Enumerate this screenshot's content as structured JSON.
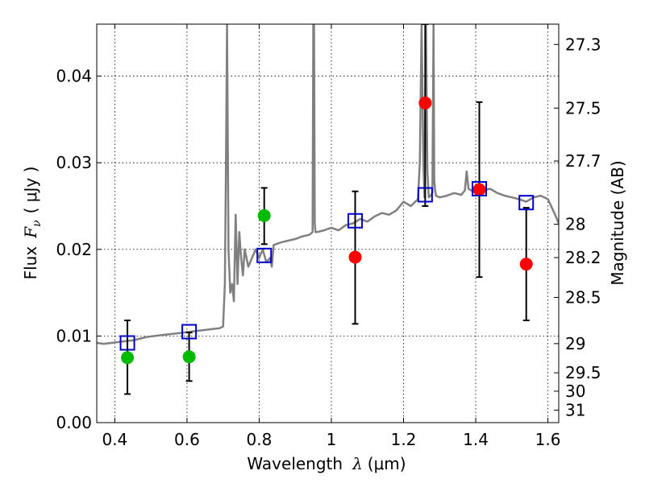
{
  "chart_data": {
    "type": "scatter",
    "xlabel": "Wavelength",
    "xlabel_symbol": "λ",
    "xlabel_unit": "(μm)",
    "ylabel": "Flux",
    "ylabel_symbol": "F",
    "ylabel_subscript": "ν",
    "ylabel_unit": "( μJy )",
    "y2label": "Magnitude (AB)",
    "xlim": [
      0.35,
      1.63
    ],
    "ylim": [
      0.0,
      0.046
    ],
    "grid": true,
    "x_ticks": [
      {
        "value": 0.4,
        "label": "0.4"
      },
      {
        "value": 0.6,
        "label": "0.6"
      },
      {
        "value": 0.8,
        "label": "0.8"
      },
      {
        "value": 1.0,
        "label": "1"
      },
      {
        "value": 1.2,
        "label": "1.2"
      },
      {
        "value": 1.4,
        "label": "1.4"
      },
      {
        "value": 1.6,
        "label": "1.6"
      }
    ],
    "y_ticks": [
      {
        "value": 0.0,
        "label": "0.00"
      },
      {
        "value": 0.01,
        "label": "0.01"
      },
      {
        "value": 0.02,
        "label": "0.02"
      },
      {
        "value": 0.03,
        "label": "0.03"
      },
      {
        "value": 0.04,
        "label": "0.04"
      }
    ],
    "mag_ticks": [
      {
        "value": 27.3,
        "label": "27.3"
      },
      {
        "value": 27.5,
        "label": "27.5"
      },
      {
        "value": 27.7,
        "label": "27.7"
      },
      {
        "value": 28.0,
        "label": "28"
      },
      {
        "value": 28.2,
        "label": "28.2"
      },
      {
        "value": 28.5,
        "label": "28.5"
      },
      {
        "value": 29.0,
        "label": "29"
      },
      {
        "value": 29.5,
        "label": "29.5"
      },
      {
        "value": 30.0,
        "label": "30"
      },
      {
        "value": 31.0,
        "label": "31"
      }
    ],
    "model_spectrum": {
      "color": "#808080",
      "x": [
        0.35,
        0.37,
        0.39,
        0.41,
        0.43,
        0.45,
        0.47,
        0.49,
        0.51,
        0.53,
        0.55,
        0.57,
        0.59,
        0.61,
        0.63,
        0.65,
        0.67,
        0.69,
        0.7,
        0.705,
        0.708,
        0.711,
        0.715,
        0.72,
        0.725,
        0.73,
        0.735,
        0.74,
        0.745,
        0.75,
        0.755,
        0.76,
        0.77,
        0.78,
        0.79,
        0.8,
        0.81,
        0.82,
        0.83,
        0.835,
        0.84,
        0.86,
        0.88,
        0.9,
        0.92,
        0.94,
        0.948,
        0.95,
        0.952,
        0.954,
        0.956,
        0.96,
        0.98,
        1.0,
        1.02,
        1.04,
        1.06,
        1.08,
        1.1,
        1.12,
        1.14,
        1.16,
        1.18,
        1.2,
        1.22,
        1.24,
        1.245,
        1.25,
        1.255,
        1.258,
        1.262,
        1.266,
        1.27,
        1.275,
        1.28,
        1.283,
        1.285,
        1.287,
        1.29,
        1.3,
        1.32,
        1.34,
        1.36,
        1.37,
        1.375,
        1.38,
        1.4,
        1.42,
        1.44,
        1.46,
        1.48,
        1.5,
        1.52,
        1.54,
        1.56,
        1.58,
        1.6,
        1.62,
        1.63
      ],
      "y": [
        0.0092,
        0.0091,
        0.0092,
        0.0093,
        0.0094,
        0.0095,
        0.0097,
        0.0099,
        0.01,
        0.0101,
        0.0102,
        0.0103,
        0.0104,
        0.0105,
        0.0106,
        0.0107,
        0.0108,
        0.0109,
        0.0111,
        0.016,
        0.03,
        0.046,
        0.02,
        0.015,
        0.016,
        0.014,
        0.024,
        0.016,
        0.022,
        0.019,
        0.017,
        0.02,
        0.018,
        0.019,
        0.02,
        0.019,
        0.02,
        0.0185,
        0.019,
        0.018,
        0.0205,
        0.0208,
        0.021,
        0.0212,
        0.0215,
        0.0217,
        0.022,
        0.046,
        0.046,
        0.023,
        0.022,
        0.022,
        0.0222,
        0.0225,
        0.0222,
        0.0228,
        0.023,
        0.0235,
        0.0232,
        0.0238,
        0.0242,
        0.024,
        0.0245,
        0.0255,
        0.025,
        0.0258,
        0.03,
        0.046,
        0.03,
        0.026,
        0.046,
        0.029,
        0.026,
        0.0262,
        0.0265,
        0.046,
        0.028,
        0.027,
        0.0262,
        0.026,
        0.0262,
        0.0265,
        0.0263,
        0.0268,
        0.029,
        0.027,
        0.0265,
        0.0268,
        0.027,
        0.0265,
        0.0262,
        0.026,
        0.0258,
        0.0255,
        0.026,
        0.0262,
        0.0258,
        0.024,
        0.023
      ]
    },
    "series": [
      {
        "marker": "filled-circle",
        "color": "#00bb00",
        "points": [
          {
            "x": 0.435,
            "y": 0.0075,
            "err_lo": 0.0033,
            "err_hi": 0.0118
          },
          {
            "x": 0.606,
            "y": 0.0076,
            "err_lo": 0.0048,
            "err_hi": 0.0104
          },
          {
            "x": 0.814,
            "y": 0.0239,
            "err_lo": 0.0206,
            "err_hi": 0.0271
          }
        ]
      },
      {
        "marker": "filled-circle",
        "color": "#ff0000",
        "points": [
          {
            "x": 1.066,
            "y": 0.0191,
            "err_lo": 0.0114,
            "err_hi": 0.0267
          },
          {
            "x": 1.26,
            "y": 0.0369,
            "err_lo": 0.025,
            "err_hi": 0.046
          },
          {
            "x": 1.41,
            "y": 0.0269,
            "err_lo": 0.0168,
            "err_hi": 0.037
          },
          {
            "x": 1.54,
            "y": 0.0183,
            "err_lo": 0.0118,
            "err_hi": 0.0248
          }
        ]
      },
      {
        "marker": "open-square",
        "color": "#0000cc",
        "points": [
          {
            "x": 0.435,
            "y": 0.0092
          },
          {
            "x": 0.606,
            "y": 0.0105
          },
          {
            "x": 0.814,
            "y": 0.0193
          },
          {
            "x": 1.066,
            "y": 0.0233
          },
          {
            "x": 1.26,
            "y": 0.0263
          },
          {
            "x": 1.41,
            "y": 0.027
          },
          {
            "x": 1.54,
            "y": 0.0254
          }
        ]
      }
    ]
  }
}
